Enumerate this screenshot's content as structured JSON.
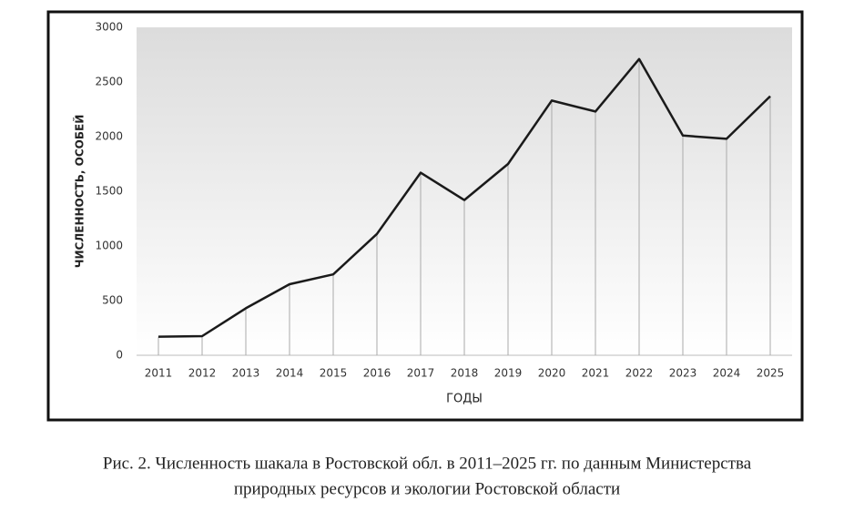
{
  "chart_data": {
    "type": "line",
    "y_label": "ЧИСЛЕННОСТЬ, ОСОБЕЙ",
    "x_label": "ГОДЫ",
    "categories": [
      "2011",
      "2012",
      "2013",
      "2014",
      "2015",
      "2016",
      "2017",
      "2018",
      "2019",
      "2020",
      "2021",
      "2022",
      "2023",
      "2024",
      "2025"
    ],
    "values": [
      170,
      175,
      430,
      650,
      740,
      1110,
      1670,
      1420,
      1750,
      2330,
      2230,
      2710,
      2010,
      1980,
      2370
    ],
    "color": "#1a1a1a",
    "drop_lines": true,
    "ylim": [
      0,
      3000
    ],
    "yticks": [
      0,
      500,
      1000,
      1500,
      2000,
      2500,
      3000
    ]
  },
  "caption": [
    "Рис. 2. Численность шакала в Ростовской обл. в 2011–2025 гг. по данным Министерства",
    "природных ресурсов и экологии Ростовской области"
  ]
}
